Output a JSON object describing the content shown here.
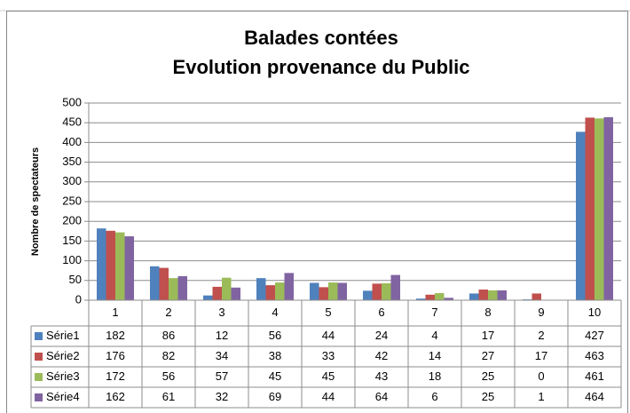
{
  "chart_data": {
    "type": "bar",
    "title": [
      "Balades contées",
      "Evolution provenance du Public"
    ],
    "y_label": "Nombre de spectateurs",
    "categories": [
      "1",
      "2",
      "3",
      "4",
      "5",
      "6",
      "7",
      "8",
      "9",
      "10"
    ],
    "series": [
      {
        "name": "Série1",
        "color": "#4f81bd",
        "values": [
          182,
          86,
          12,
          56,
          44,
          24,
          4,
          17,
          2,
          427
        ]
      },
      {
        "name": "Série2",
        "color": "#c0504d",
        "values": [
          176,
          82,
          34,
          38,
          33,
          42,
          14,
          27,
          17,
          463
        ]
      },
      {
        "name": "Série3",
        "color": "#9bbb59",
        "values": [
          172,
          56,
          57,
          45,
          45,
          43,
          18,
          25,
          0,
          461
        ]
      },
      {
        "name": "Série4",
        "color": "#8064a2",
        "values": [
          162,
          61,
          32,
          69,
          44,
          64,
          6,
          25,
          1,
          464
        ]
      }
    ],
    "ylim": [
      0,
      500
    ],
    "yticks": [
      0,
      50,
      100,
      150,
      200,
      250,
      300,
      350,
      400,
      450,
      500
    ],
    "grid": true,
    "data_table": true
  }
}
